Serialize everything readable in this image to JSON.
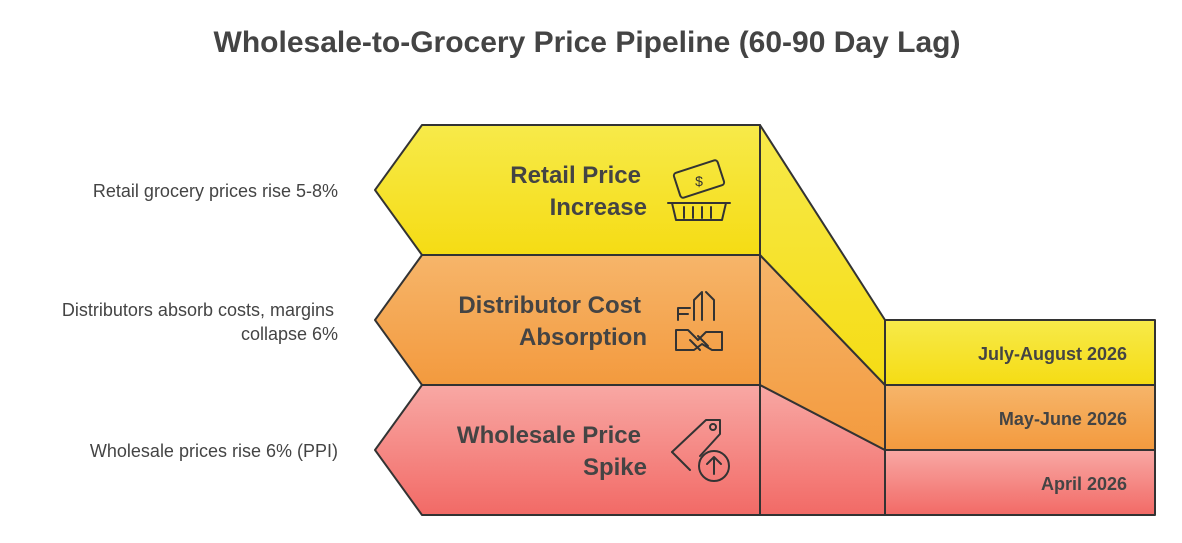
{
  "title": "Wholesale-to-Grocery Price Pipeline (60-90 Day Lag)",
  "layers": [
    {
      "title": [
        "Retail Price",
        "Increase"
      ],
      "description": [
        "Retail grocery prices rise 5-8%"
      ],
      "period": "July-August 2026"
    },
    {
      "title": [
        "Distributor Cost",
        "Absorption"
      ],
      "description": [
        "Distributors absorb costs, margins",
        "collapse 6%"
      ],
      "period": "May-June 2026"
    },
    {
      "title": [
        "Wholesale Price",
        "Spike"
      ],
      "description": [
        "Wholesale prices rise 6% (PPI)"
      ],
      "period": "April 2026"
    }
  ]
}
